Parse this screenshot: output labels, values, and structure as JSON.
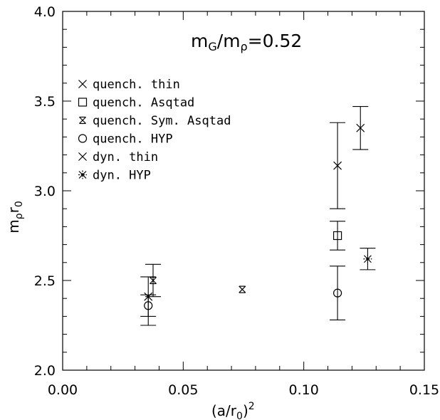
{
  "chart_data": {
    "type": "scatter",
    "title_main": "m",
    "title_sub1": "G",
    "title_mid": "/m",
    "title_sub2": "ρ",
    "title_val": "=0.52",
    "xlabel_main": "(a/r",
    "xlabel_sub": "0",
    "xlabel_end": ")",
    "xlabel_sup": "2",
    "ylabel_main": "m",
    "ylabel_sub1": "ρ",
    "ylabel_mid": "r",
    "ylabel_sub2": "0",
    "xlim": [
      0.0,
      0.15
    ],
    "ylim": [
      2.0,
      4.0
    ],
    "x_ticks": [
      "0.00",
      "0.05",
      "0.10",
      "0.15"
    ],
    "y_ticks": [
      "2.0",
      "2.5",
      "3.0",
      "3.5",
      "4.0"
    ],
    "grid": false,
    "legend_position": "upper-left",
    "series": [
      {
        "name": "quench. thin",
        "marker": "cross",
        "points": [
          {
            "x": 0.0355,
            "y": 2.41,
            "err": 0.0
          },
          {
            "x": 0.114,
            "y": 3.14,
            "err": 0.24
          }
        ]
      },
      {
        "name": "quench. Asqtad",
        "marker": "square",
        "points": [
          {
            "x": 0.114,
            "y": 2.75,
            "err": 0.08
          }
        ]
      },
      {
        "name": "quench. Sym. Asqtad",
        "marker": "boxcross",
        "points": [
          {
            "x": 0.0375,
            "y": 2.5,
            "err": 0.09
          },
          {
            "x": 0.0745,
            "y": 2.45,
            "err": 0.0
          }
        ]
      },
      {
        "name": "quench. HYP",
        "marker": "circle",
        "points": [
          {
            "x": 0.0355,
            "y": 2.36,
            "err": 0.06
          },
          {
            "x": 0.114,
            "y": 2.43,
            "err": 0.15
          }
        ]
      },
      {
        "name": "dyn. thin",
        "marker": "cross-bold",
        "points": [
          {
            "x": 0.1235,
            "y": 3.35,
            "err": 0.12
          }
        ]
      },
      {
        "name": "dyn. HYP",
        "marker": "star",
        "points": [
          {
            "x": 0.1265,
            "y": 2.62,
            "err": 0.06
          }
        ]
      }
    ],
    "extra_errorbars": [
      {
        "x": 0.0355,
        "y": 2.385,
        "err": 0.135
      }
    ]
  }
}
